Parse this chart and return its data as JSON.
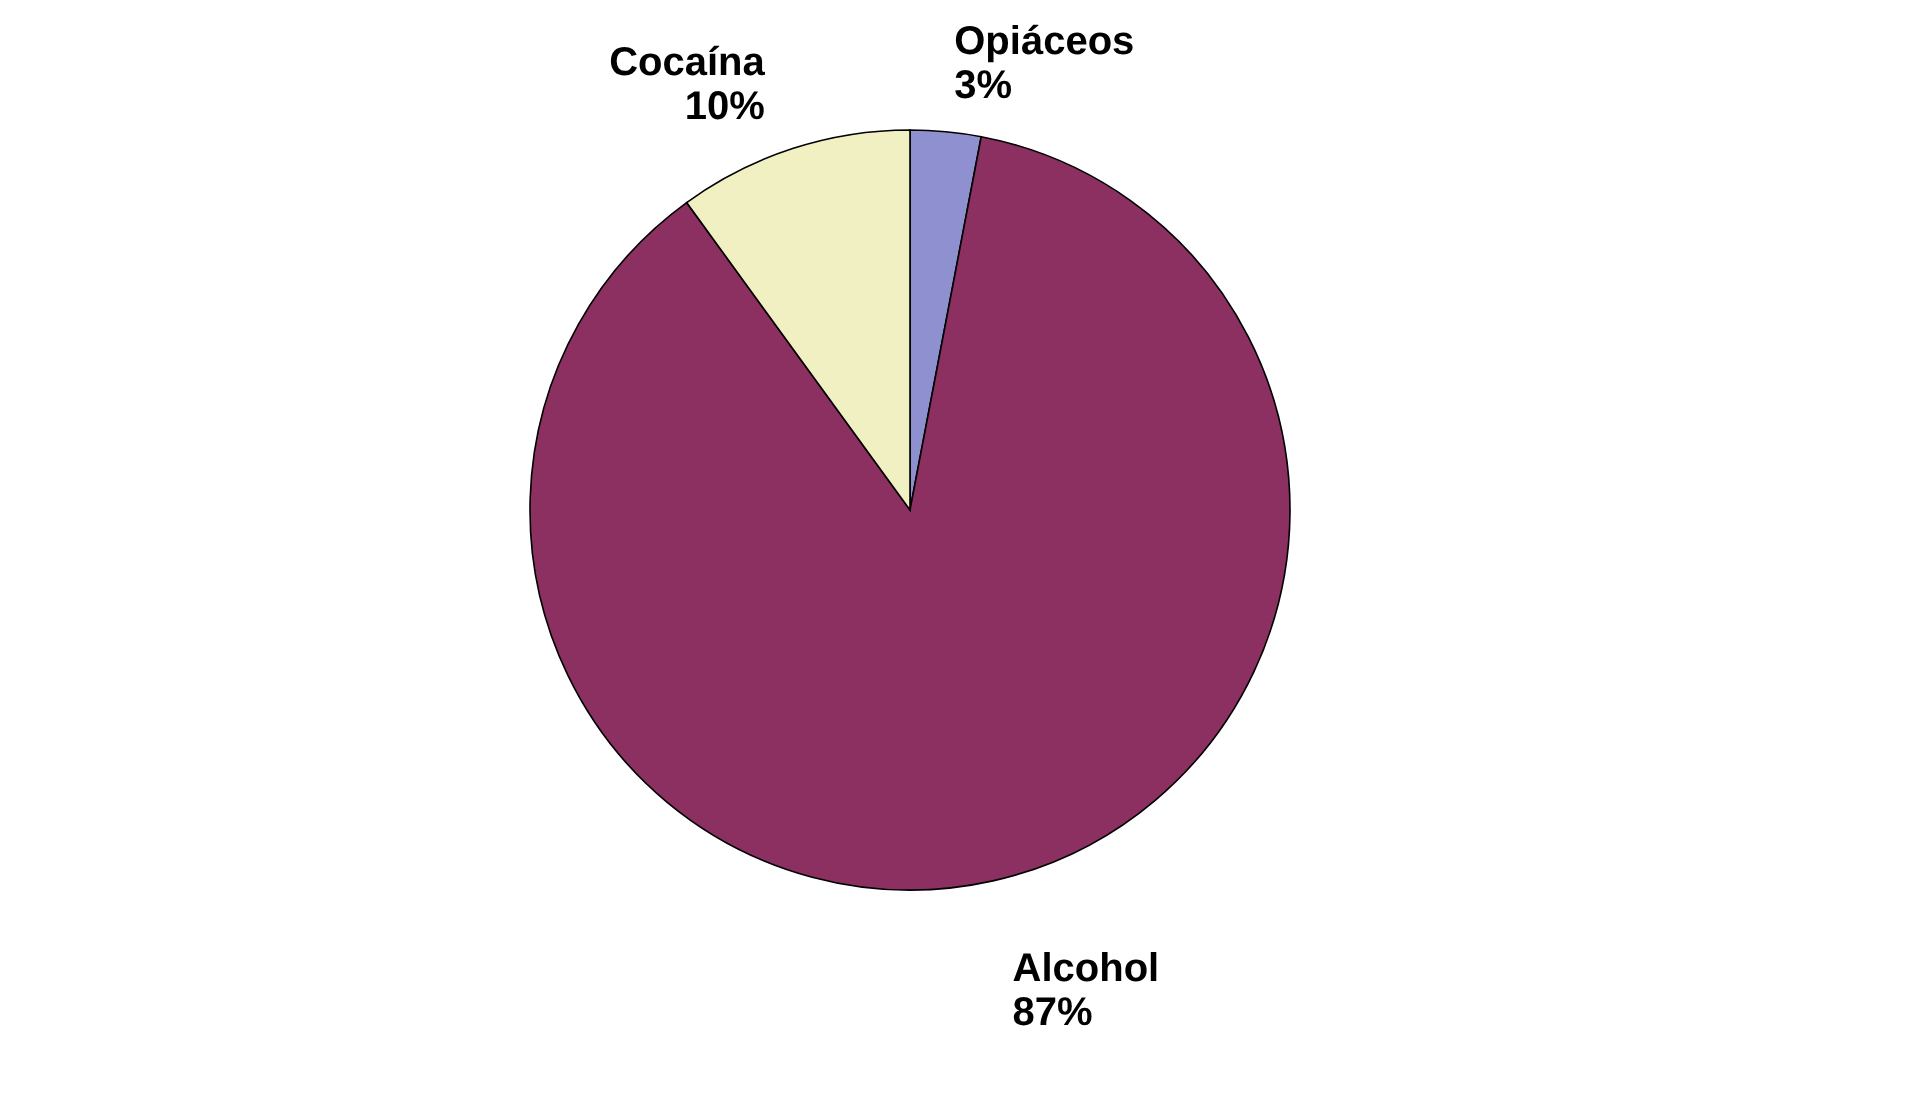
{
  "chart_data": {
    "type": "pie",
    "categories": [
      "Opiáceos",
      "Alcohol",
      "Cocaína"
    ],
    "values": [
      3,
      87,
      10
    ],
    "colors": [
      "#8e90d0",
      "#8b3060",
      "#f0f0c2"
    ],
    "value_labels": [
      "3%",
      "87%",
      "10%"
    ]
  }
}
